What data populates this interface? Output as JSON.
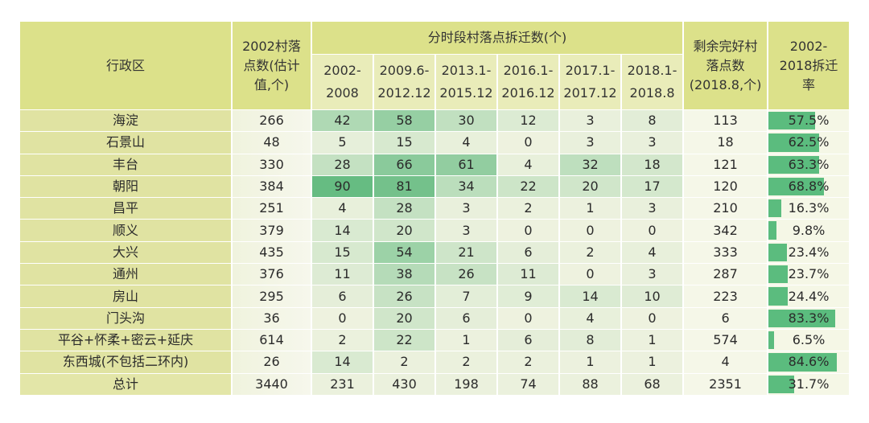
{
  "table": {
    "headers": {
      "district": "行政区",
      "villages_2002": "2002村落点数(估计值,个)",
      "period_group": "分时段村落点拆迁数(个)",
      "periods": [
        "2002-\n2008",
        "2009.6-\n2012.12",
        "2013.1-\n2015.12",
        "2016.1-\n2016.12",
        "2017.1-\n2017.12",
        "2018.1-\n2018.8"
      ],
      "remaining": "剩余完好村落点数(2018.8,个)",
      "rate": "2002-2018拆迁率"
    },
    "rows": [
      {
        "district": "海淀",
        "v2002": "266",
        "p": [
          "42",
          "58",
          "30",
          "12",
          "3",
          "8"
        ],
        "remaining": "113",
        "rate": "57.5%"
      },
      {
        "district": "石景山",
        "v2002": "48",
        "p": [
          "5",
          "15",
          "4",
          "0",
          "3",
          "3"
        ],
        "remaining": "18",
        "rate": "62.5%"
      },
      {
        "district": "丰台",
        "v2002": "330",
        "p": [
          "28",
          "66",
          "61",
          "4",
          "32",
          "18"
        ],
        "remaining": "121",
        "rate": "63.3%"
      },
      {
        "district": "朝阳",
        "v2002": "384",
        "p": [
          "90",
          "81",
          "34",
          "22",
          "20",
          "17"
        ],
        "remaining": "120",
        "rate": "68.8%"
      },
      {
        "district": "昌平",
        "v2002": "251",
        "p": [
          "4",
          "28",
          "3",
          "2",
          "1",
          "3"
        ],
        "remaining": "210",
        "rate": "16.3%"
      },
      {
        "district": "顺义",
        "v2002": "379",
        "p": [
          "14",
          "20",
          "3",
          "0",
          "0",
          "0"
        ],
        "remaining": "342",
        "rate": "9.8%"
      },
      {
        "district": "大兴",
        "v2002": "435",
        "p": [
          "15",
          "54",
          "21",
          "6",
          "2",
          "4"
        ],
        "remaining": "333",
        "rate": "23.4%"
      },
      {
        "district": "通州",
        "v2002": "376",
        "p": [
          "11",
          "38",
          "26",
          "11",
          "0",
          "3"
        ],
        "remaining": "287",
        "rate": "23.7%"
      },
      {
        "district": "房山",
        "v2002": "295",
        "p": [
          "6",
          "26",
          "7",
          "9",
          "14",
          "10"
        ],
        "remaining": "223",
        "rate": "24.4%"
      },
      {
        "district": "门头沟",
        "v2002": "36",
        "p": [
          "0",
          "20",
          "6",
          "0",
          "4",
          "0"
        ],
        "remaining": "6",
        "rate": "83.3%"
      },
      {
        "district": "平谷+怀柔+密云+延庆",
        "v2002": "614",
        "p": [
          "2",
          "22",
          "1",
          "6",
          "8",
          "1"
        ],
        "remaining": "574",
        "rate": "6.5%"
      },
      {
        "district": "东西城(不包括二环内)",
        "v2002": "26",
        "p": [
          "14",
          "2",
          "2",
          "2",
          "1",
          "1"
        ],
        "remaining": "4",
        "rate": "84.6%"
      },
      {
        "district": "总计",
        "v2002": "3440",
        "p": [
          "231",
          "430",
          "198",
          "74",
          "88",
          "68"
        ],
        "remaining": "2351",
        "rate": "31.7%"
      }
    ]
  },
  "colors": {
    "header": "#dce18a",
    "subheader": "#e9ecb9",
    "name_col": "#e0e3a2",
    "heat_low": "#eef2df",
    "heat_high": "#5fb97d",
    "bar": "#5bbc7e"
  }
}
